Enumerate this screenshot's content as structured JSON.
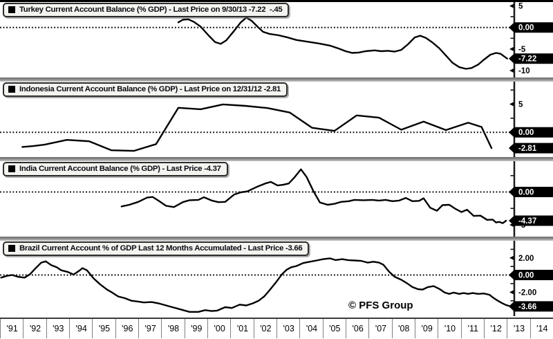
{
  "meta": {
    "watermark": "© PFS Group"
  },
  "style": {
    "line_color": "#000000",
    "badge_bg": "#000000",
    "badge_fg": "#ffffff",
    "legend_bg": "#f3f3ef",
    "background": "#ffffff"
  },
  "x_axis": {
    "year_labels": [
      "'91",
      "'92",
      "'93",
      "'94",
      "'95",
      "'96",
      "'97",
      "'98",
      "'99",
      "'00",
      "'01",
      "'02",
      "'03",
      "'04",
      "'05",
      "'06",
      "'07",
      "'08",
      "'09",
      "'10",
      "'11",
      "'12",
      "'13",
      "'14"
    ],
    "min_year": 1991,
    "max_year": 2014.1
  },
  "chart_data": [
    {
      "type": "line",
      "country": "Turkey",
      "title": "Turkey Current Account Balance (% GDP) - Last Price on 9/30/13 -7.22  -.45",
      "last_price": "-7.22",
      "ylim": [
        -11.6,
        5.9
      ],
      "zero_line": 0,
      "ticks": [
        {
          "value": 5,
          "label": "5"
        },
        {
          "value": 2.5
        },
        {
          "value": -2.5
        },
        {
          "value": -5,
          "label": "-5"
        },
        {
          "value": -7.5
        },
        {
          "value": -10,
          "label": "-10"
        }
      ],
      "badges": [
        {
          "value": 0,
          "label": "0.00"
        },
        {
          "value": -7.22,
          "label": "-7.22"
        }
      ],
      "series": [
        [
          1999.0,
          1.2
        ],
        [
          1999.2,
          1.8
        ],
        [
          1999.45,
          1.9
        ],
        [
          1999.7,
          1.3
        ],
        [
          2000.0,
          0.2
        ],
        [
          2000.35,
          -1.8
        ],
        [
          2000.65,
          -3.4
        ],
        [
          2000.9,
          -3.8
        ],
        [
          2001.15,
          -3.0
        ],
        [
          2001.5,
          -0.8
        ],
        [
          2001.8,
          1.2
        ],
        [
          2002.05,
          2.3
        ],
        [
          2002.3,
          1.5
        ],
        [
          2002.55,
          0.2
        ],
        [
          2002.8,
          -1.0
        ],
        [
          2003.1,
          -1.5
        ],
        [
          2003.5,
          -1.8
        ],
        [
          2003.9,
          -2.3
        ],
        [
          2004.3,
          -2.9
        ],
        [
          2004.8,
          -3.3
        ],
        [
          2005.3,
          -3.7
        ],
        [
          2005.8,
          -4.2
        ],
        [
          2006.2,
          -4.9
        ],
        [
          2006.5,
          -5.5
        ],
        [
          2006.8,
          -5.9
        ],
        [
          2007.1,
          -5.8
        ],
        [
          2007.4,
          -5.5
        ],
        [
          2007.8,
          -5.3
        ],
        [
          2008.1,
          -5.5
        ],
        [
          2008.4,
          -5.4
        ],
        [
          2008.7,
          -5.6
        ],
        [
          2009.0,
          -5.2
        ],
        [
          2009.3,
          -3.9
        ],
        [
          2009.6,
          -2.3
        ],
        [
          2009.85,
          -1.9
        ],
        [
          2010.1,
          -2.4
        ],
        [
          2010.4,
          -3.5
        ],
        [
          2010.7,
          -4.8
        ],
        [
          2011.0,
          -6.5
        ],
        [
          2011.3,
          -8.2
        ],
        [
          2011.6,
          -9.2
        ],
        [
          2011.9,
          -9.6
        ],
        [
          2012.15,
          -9.4
        ],
        [
          2012.45,
          -8.6
        ],
        [
          2012.7,
          -7.5
        ],
        [
          2013.0,
          -6.3
        ],
        [
          2013.25,
          -5.9
        ],
        [
          2013.45,
          -6.1
        ],
        [
          2013.75,
          -7.22
        ]
      ]
    },
    {
      "type": "line",
      "country": "Indonesia",
      "title": "Indonesia Current Account Balance (% GDP) - Last Price on 12/31/12 -2.81",
      "last_price": "-2.81",
      "ylim": [
        -4.4,
        9.0
      ],
      "zero_line": 0,
      "ticks": [
        {
          "value": 7.5
        },
        {
          "value": 5,
          "label": "5"
        },
        {
          "value": 2.5
        },
        {
          "value": -2.5
        }
      ],
      "badges": [
        {
          "value": 0,
          "label": "0.00"
        },
        {
          "value": -2.81,
          "label": "-2.81"
        }
      ],
      "series": [
        [
          1992.0,
          -2.6
        ],
        [
          1992.5,
          -2.45
        ],
        [
          1993.0,
          -2.2
        ],
        [
          1994.0,
          -1.35
        ],
        [
          1995.0,
          -1.6
        ],
        [
          1996.0,
          -3.2
        ],
        [
          1997.0,
          -3.3
        ],
        [
          1998.0,
          -2.1
        ],
        [
          1999.0,
          4.35
        ],
        [
          2000.0,
          4.1
        ],
        [
          2001.0,
          4.95
        ],
        [
          2002.0,
          4.7
        ],
        [
          2003.0,
          4.3
        ],
        [
          2004.0,
          3.5
        ],
        [
          2005.0,
          0.8
        ],
        [
          2006.0,
          0.25
        ],
        [
          2007.0,
          3.0
        ],
        [
          2008.0,
          2.6
        ],
        [
          2009.0,
          0.45
        ],
        [
          2010.0,
          1.9
        ],
        [
          2011.0,
          0.4
        ],
        [
          2012.0,
          1.7
        ],
        [
          2012.6,
          0.95
        ],
        [
          2013.05,
          -2.81
        ]
      ]
    },
    {
      "type": "line",
      "country": "India",
      "title": "India Current Account Balance (% GDP) - Last Price -4.37",
      "last_price": "-4.37",
      "ylim": [
        -6.8,
        4.7
      ],
      "zero_line": 0,
      "ticks": [
        {
          "value": 2.5
        },
        {
          "value": -2.5
        },
        {
          "value": -5,
          "label": "-5"
        }
      ],
      "badges": [
        {
          "value": 0,
          "label": "0.00"
        },
        {
          "value": -4.37,
          "label": "-4.37"
        }
      ],
      "series": [
        [
          1996.45,
          -2.2
        ],
        [
          1996.8,
          -1.95
        ],
        [
          1997.2,
          -1.5
        ],
        [
          1997.6,
          -0.85
        ],
        [
          1997.85,
          -0.75
        ],
        [
          1998.1,
          -1.3
        ],
        [
          1998.45,
          -2.1
        ],
        [
          1998.8,
          -2.3
        ],
        [
          1999.2,
          -1.55
        ],
        [
          1999.5,
          -1.25
        ],
        [
          1999.9,
          -1.2
        ],
        [
          2000.15,
          -0.8
        ],
        [
          2000.5,
          -1.3
        ],
        [
          2000.8,
          -1.55
        ],
        [
          2001.1,
          -1.5
        ],
        [
          2001.5,
          -0.4
        ],
        [
          2001.8,
          -0.05
        ],
        [
          2002.1,
          0.1
        ],
        [
          2002.5,
          0.75
        ],
        [
          2002.9,
          1.3
        ],
        [
          2003.15,
          1.55
        ],
        [
          2003.45,
          1.0
        ],
        [
          2003.7,
          1.1
        ],
        [
          2003.95,
          1.3
        ],
        [
          2004.2,
          2.2
        ],
        [
          2004.5,
          3.45
        ],
        [
          2004.75,
          2.3
        ],
        [
          2005.05,
          0.2
        ],
        [
          2005.35,
          -1.6
        ],
        [
          2005.7,
          -1.95
        ],
        [
          2006.0,
          -1.8
        ],
        [
          2006.3,
          -1.5
        ],
        [
          2006.65,
          -1.4
        ],
        [
          2006.9,
          -1.2
        ],
        [
          2007.3,
          -1.25
        ],
        [
          2007.7,
          -1.2
        ],
        [
          2008.0,
          -1.3
        ],
        [
          2008.3,
          -1.2
        ],
        [
          2008.6,
          -1.4
        ],
        [
          2008.9,
          -1.3
        ],
        [
          2009.2,
          -0.9
        ],
        [
          2009.5,
          -1.4
        ],
        [
          2009.8,
          -1.35
        ],
        [
          2010.0,
          -0.95
        ],
        [
          2010.3,
          -2.4
        ],
        [
          2010.6,
          -2.85
        ],
        [
          2010.85,
          -2.0
        ],
        [
          2011.15,
          -1.95
        ],
        [
          2011.45,
          -2.6
        ],
        [
          2011.7,
          -3.05
        ],
        [
          2011.95,
          -2.7
        ],
        [
          2012.25,
          -3.65
        ],
        [
          2012.55,
          -3.6
        ],
        [
          2012.85,
          -4.25
        ],
        [
          2013.1,
          -4.2
        ],
        [
          2013.25,
          -4.65
        ],
        [
          2013.4,
          -4.55
        ],
        [
          2013.55,
          -4.75
        ],
        [
          2013.7,
          -4.37
        ]
      ]
    },
    {
      "type": "line",
      "country": "Brazil",
      "title": "Brazil Current Account % of GDP Last 12 Months Accumulated - Last Price -3.66",
      "last_price": "-3.66",
      "ylim": [
        -4.8,
        4.0
      ],
      "zero_line": 0,
      "ticks": [
        {
          "value": 3
        },
        {
          "value": 2,
          "label": "2.00"
        },
        {
          "value": 1
        },
        {
          "value": -1
        },
        {
          "value": -2,
          "label": "-2.00"
        },
        {
          "value": -3
        }
      ],
      "badges": [
        {
          "value": 0,
          "label": "0.00"
        },
        {
          "value": -3.66,
          "label": "-3.66"
        }
      ],
      "series": [
        [
          1991.05,
          -0.3
        ],
        [
          1991.3,
          -0.1
        ],
        [
          1991.55,
          0.0
        ],
        [
          1991.8,
          -0.2
        ],
        [
          1992.1,
          -0.3
        ],
        [
          1992.35,
          0.1
        ],
        [
          1992.6,
          0.8
        ],
        [
          1992.85,
          1.45
        ],
        [
          1993.05,
          1.6
        ],
        [
          1993.3,
          1.15
        ],
        [
          1993.55,
          0.9
        ],
        [
          1993.75,
          0.55
        ],
        [
          1994.05,
          0.35
        ],
        [
          1994.3,
          0.05
        ],
        [
          1994.55,
          0.5
        ],
        [
          1994.7,
          0.8
        ],
        [
          1994.9,
          0.55
        ],
        [
          1995.2,
          -0.4
        ],
        [
          1995.5,
          -1.1
        ],
        [
          1995.8,
          -1.7
        ],
        [
          1996.0,
          -2.0
        ],
        [
          1996.3,
          -2.5
        ],
        [
          1996.6,
          -2.7
        ],
        [
          1996.9,
          -3.0
        ],
        [
          1997.2,
          -3.1
        ],
        [
          1997.45,
          -3.2
        ],
        [
          1997.8,
          -3.15
        ],
        [
          1998.1,
          -3.3
        ],
        [
          1998.45,
          -3.55
        ],
        [
          1998.8,
          -3.8
        ],
        [
          1999.15,
          -4.05
        ],
        [
          1999.5,
          -4.3
        ],
        [
          1999.9,
          -4.3
        ],
        [
          2000.2,
          -4.1
        ],
        [
          2000.5,
          -4.2
        ],
        [
          2000.75,
          -4.15
        ],
        [
          2001.1,
          -3.75
        ],
        [
          2001.4,
          -3.85
        ],
        [
          2001.75,
          -3.45
        ],
        [
          2002.05,
          -3.55
        ],
        [
          2002.35,
          -3.3
        ],
        [
          2002.6,
          -3.0
        ],
        [
          2002.85,
          -2.5
        ],
        [
          2003.05,
          -1.9
        ],
        [
          2003.35,
          -0.95
        ],
        [
          2003.65,
          0.1
        ],
        [
          2003.85,
          0.6
        ],
        [
          2004.05,
          0.9
        ],
        [
          2004.3,
          1.05
        ],
        [
          2004.6,
          1.4
        ],
        [
          2004.9,
          1.55
        ],
        [
          2005.2,
          1.7
        ],
        [
          2005.5,
          1.85
        ],
        [
          2005.8,
          1.95
        ],
        [
          2006.05,
          1.75
        ],
        [
          2006.35,
          1.85
        ],
        [
          2006.6,
          1.75
        ],
        [
          2006.9,
          1.7
        ],
        [
          2007.2,
          1.65
        ],
        [
          2007.5,
          1.45
        ],
        [
          2007.75,
          1.55
        ],
        [
          2008.0,
          1.45
        ],
        [
          2008.2,
          1.2
        ],
        [
          2008.45,
          0.4
        ],
        [
          2008.7,
          -0.2
        ],
        [
          2009.0,
          -0.55
        ],
        [
          2009.25,
          -0.95
        ],
        [
          2009.5,
          -1.4
        ],
        [
          2009.75,
          -1.65
        ],
        [
          2009.95,
          -1.7
        ],
        [
          2010.2,
          -1.4
        ],
        [
          2010.45,
          -1.3
        ],
        [
          2010.7,
          -1.6
        ],
        [
          2010.95,
          -2.05
        ],
        [
          2011.15,
          -2.2
        ],
        [
          2011.35,
          -2.05
        ],
        [
          2011.6,
          -2.2
        ],
        [
          2011.8,
          -2.1
        ],
        [
          2012.0,
          -2.2
        ],
        [
          2012.2,
          -2.1
        ],
        [
          2012.45,
          -2.2
        ],
        [
          2012.7,
          -2.15
        ],
        [
          2012.95,
          -2.3
        ],
        [
          2013.1,
          -2.6
        ],
        [
          2013.3,
          -2.95
        ],
        [
          2013.5,
          -3.25
        ],
        [
          2013.7,
          -3.5
        ],
        [
          2013.85,
          -3.62
        ],
        [
          2013.95,
          -3.66
        ]
      ]
    }
  ]
}
